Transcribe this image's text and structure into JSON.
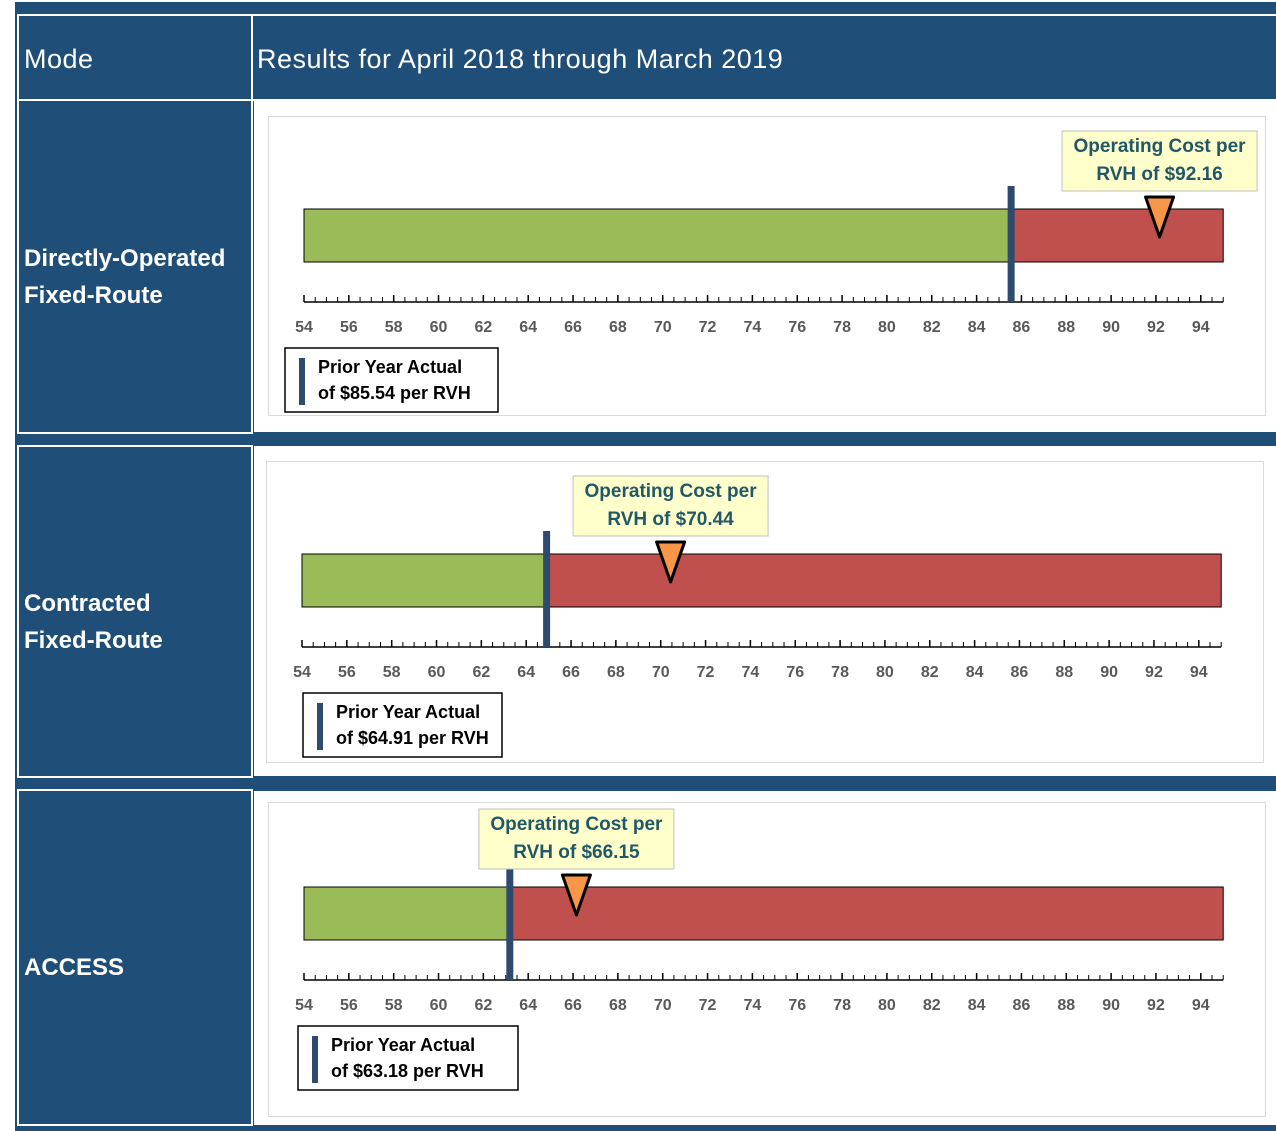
{
  "table": {
    "headers": [
      "Mode",
      "Results for April 2018 through March 2019"
    ]
  },
  "chart_data": [
    {
      "type": "bullet",
      "mode": [
        "Directly-Operated",
        "Fixed-Route"
      ],
      "xlim": [
        54,
        95
      ],
      "xticks": [
        54,
        56,
        58,
        60,
        62,
        64,
        66,
        68,
        70,
        72,
        74,
        76,
        78,
        80,
        82,
        84,
        86,
        88,
        90,
        92,
        94
      ],
      "xminor": 0.5,
      "value": 92.16,
      "value_label": [
        "Operating Cost per",
        "RVH of $92.16"
      ],
      "target": 85.54,
      "target_label": [
        "Prior Year Actual",
        "of $85.54 per RVH"
      ],
      "good_color": "#9bbb59",
      "bad_color": "#c0504d",
      "marker_color": "#f79646",
      "target_color": "#2e4a6e"
    },
    {
      "type": "bullet",
      "mode": [
        "Contracted",
        "Fixed-Route"
      ],
      "xlim": [
        54,
        95
      ],
      "xticks": [
        54,
        56,
        58,
        60,
        62,
        64,
        66,
        68,
        70,
        72,
        74,
        76,
        78,
        80,
        82,
        84,
        86,
        88,
        90,
        92,
        94
      ],
      "xminor": 0.5,
      "value": 70.44,
      "value_label": [
        "Operating Cost per",
        "RVH of $70.44"
      ],
      "target": 64.91,
      "target_label": [
        "Prior Year Actual",
        "of $64.91 per RVH"
      ],
      "good_color": "#9bbb59",
      "bad_color": "#c0504d",
      "marker_color": "#f79646",
      "target_color": "#2e4a6e"
    },
    {
      "type": "bullet",
      "mode": [
        "ACCESS"
      ],
      "xlim": [
        54,
        95
      ],
      "xticks": [
        54,
        56,
        58,
        60,
        62,
        64,
        66,
        68,
        70,
        72,
        74,
        76,
        78,
        80,
        82,
        84,
        86,
        88,
        90,
        92,
        94
      ],
      "xminor": 0.5,
      "value": 66.15,
      "value_label": [
        "Operating Cost per",
        "RVH of $66.15"
      ],
      "target": 63.18,
      "target_label": [
        "Prior Year Actual",
        "of $63.18 per RVH"
      ],
      "good_color": "#9bbb59",
      "bad_color": "#c0504d",
      "marker_color": "#f79646",
      "target_color": "#2e4a6e"
    }
  ]
}
